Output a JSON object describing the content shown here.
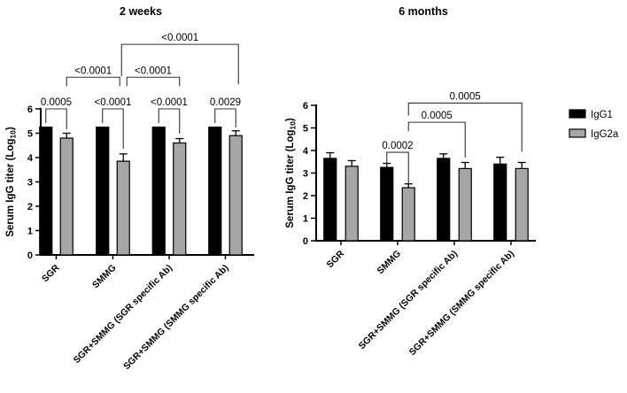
{
  "chart_data": [
    {
      "type": "bar",
      "title": "2 weeks",
      "ylabel": "Serum IgG titer (Log10)",
      "ylabel_parts": {
        "main": "Serum IgG titer (Log",
        "sub": "10",
        "close": ")"
      },
      "ylim": [
        0,
        6
      ],
      "yticks": [
        0,
        1,
        2,
        3,
        4,
        5,
        6
      ],
      "grid": "off",
      "categories": [
        "SGR",
        "SMMG",
        "SGR+SMMG (SGR specific Ab)",
        "SGR+SMMG (SMMG specific Ab)"
      ],
      "series": [
        {
          "name": "IgG1",
          "color": "#000000",
          "values": [
            5.25,
            5.25,
            5.25,
            5.25
          ],
          "errors": [
            0,
            0,
            0,
            0
          ]
        },
        {
          "name": "IgG2a",
          "color": "#a6a6a6",
          "values": [
            4.8,
            3.85,
            4.6,
            4.9
          ],
          "errors": [
            0.2,
            0.3,
            0.18,
            0.2
          ]
        }
      ],
      "significance": [
        {
          "label": "0.0005",
          "from": [
            0,
            0
          ],
          "to": [
            0,
            1
          ],
          "level_y": 6.0,
          "drop_from": 16,
          "drop_to": 23
        },
        {
          "label": "<0.0001",
          "from": [
            1,
            0
          ],
          "to": [
            1,
            1
          ],
          "level_y": 6.0,
          "drop_from": 16,
          "drop_to": 45
        },
        {
          "label": "<0.0001",
          "from": [
            2,
            0
          ],
          "to": [
            2,
            1
          ],
          "level_y": 6.0,
          "drop_from": 16,
          "drop_to": 28
        },
        {
          "label": "0.0029",
          "from": [
            3,
            0
          ],
          "to": [
            3,
            1
          ],
          "level_y": 6.0,
          "drop_from": 16,
          "drop_to": 21
        },
        {
          "label": "<0.0001",
          "from": [
            0,
            1
          ],
          "to": [
            1,
            1
          ],
          "level_y": 7.3,
          "drop_from": 10,
          "drop_to": 10,
          "dx_to": -4
        },
        {
          "label": "<0.0001",
          "from": [
            1,
            1
          ],
          "to": [
            2,
            1
          ],
          "level_y": 7.3,
          "drop_from": 10,
          "drop_to": 10,
          "dx_from": 4
        },
        {
          "label": "<0.0001",
          "from": [
            1,
            1
          ],
          "to": [
            3,
            1
          ],
          "level_y": 8.65,
          "drop_from": 36,
          "drop_to": 45,
          "dx_from": -2,
          "dx_to": 3
        }
      ]
    },
    {
      "type": "bar",
      "title": "6 months",
      "ylabel": "Serum IgG titer (Log10)",
      "ylabel_parts": {
        "main": "Serum IgG titer (Log",
        "sub": "10",
        "close": ")"
      },
      "ylim": [
        0,
        6
      ],
      "yticks": [
        0,
        1,
        2,
        3,
        4,
        5,
        6
      ],
      "grid": "off",
      "categories": [
        "SGR",
        "SMMG",
        "SGR+SMMG (SGR specific Ab)",
        "SGR+SMMG (SMMG specific Ab)"
      ],
      "series": [
        {
          "name": "IgG1",
          "color": "#000000",
          "values": [
            3.65,
            3.25,
            3.65,
            3.4
          ],
          "errors": [
            0.25,
            0.18,
            0.2,
            0.3
          ]
        },
        {
          "name": "IgG2a",
          "color": "#a6a6a6",
          "values": [
            3.3,
            2.35,
            3.2,
            3.2
          ],
          "errors": [
            0.25,
            0.17,
            0.27,
            0.27
          ]
        }
      ],
      "significance": [
        {
          "label": "0.0002",
          "from": [
            1,
            0
          ],
          "to": [
            1,
            1
          ],
          "level_y": 3.92,
          "drop_from": 14,
          "drop_to": 35
        },
        {
          "label": "0.0005",
          "from": [
            1,
            1
          ],
          "to": [
            2,
            1
          ],
          "level_y": 5.25,
          "drop_from": 10,
          "drop_to": 40
        },
        {
          "label": "0.0005",
          "from": [
            1,
            1
          ],
          "to": [
            3,
            1
          ],
          "level_y": 6.1,
          "drop_from": 14,
          "drop_to": 55
        }
      ]
    }
  ],
  "legend": {
    "items": [
      {
        "label": "IgG1",
        "color": "#000000"
      },
      {
        "label": "IgG2a",
        "color": "#a6a6a6"
      }
    ],
    "position": "right"
  },
  "colors": {
    "bar_black": "#000000",
    "bar_gray": "#a6a6a6",
    "bracket": "#333333",
    "axis": "#000000"
  }
}
